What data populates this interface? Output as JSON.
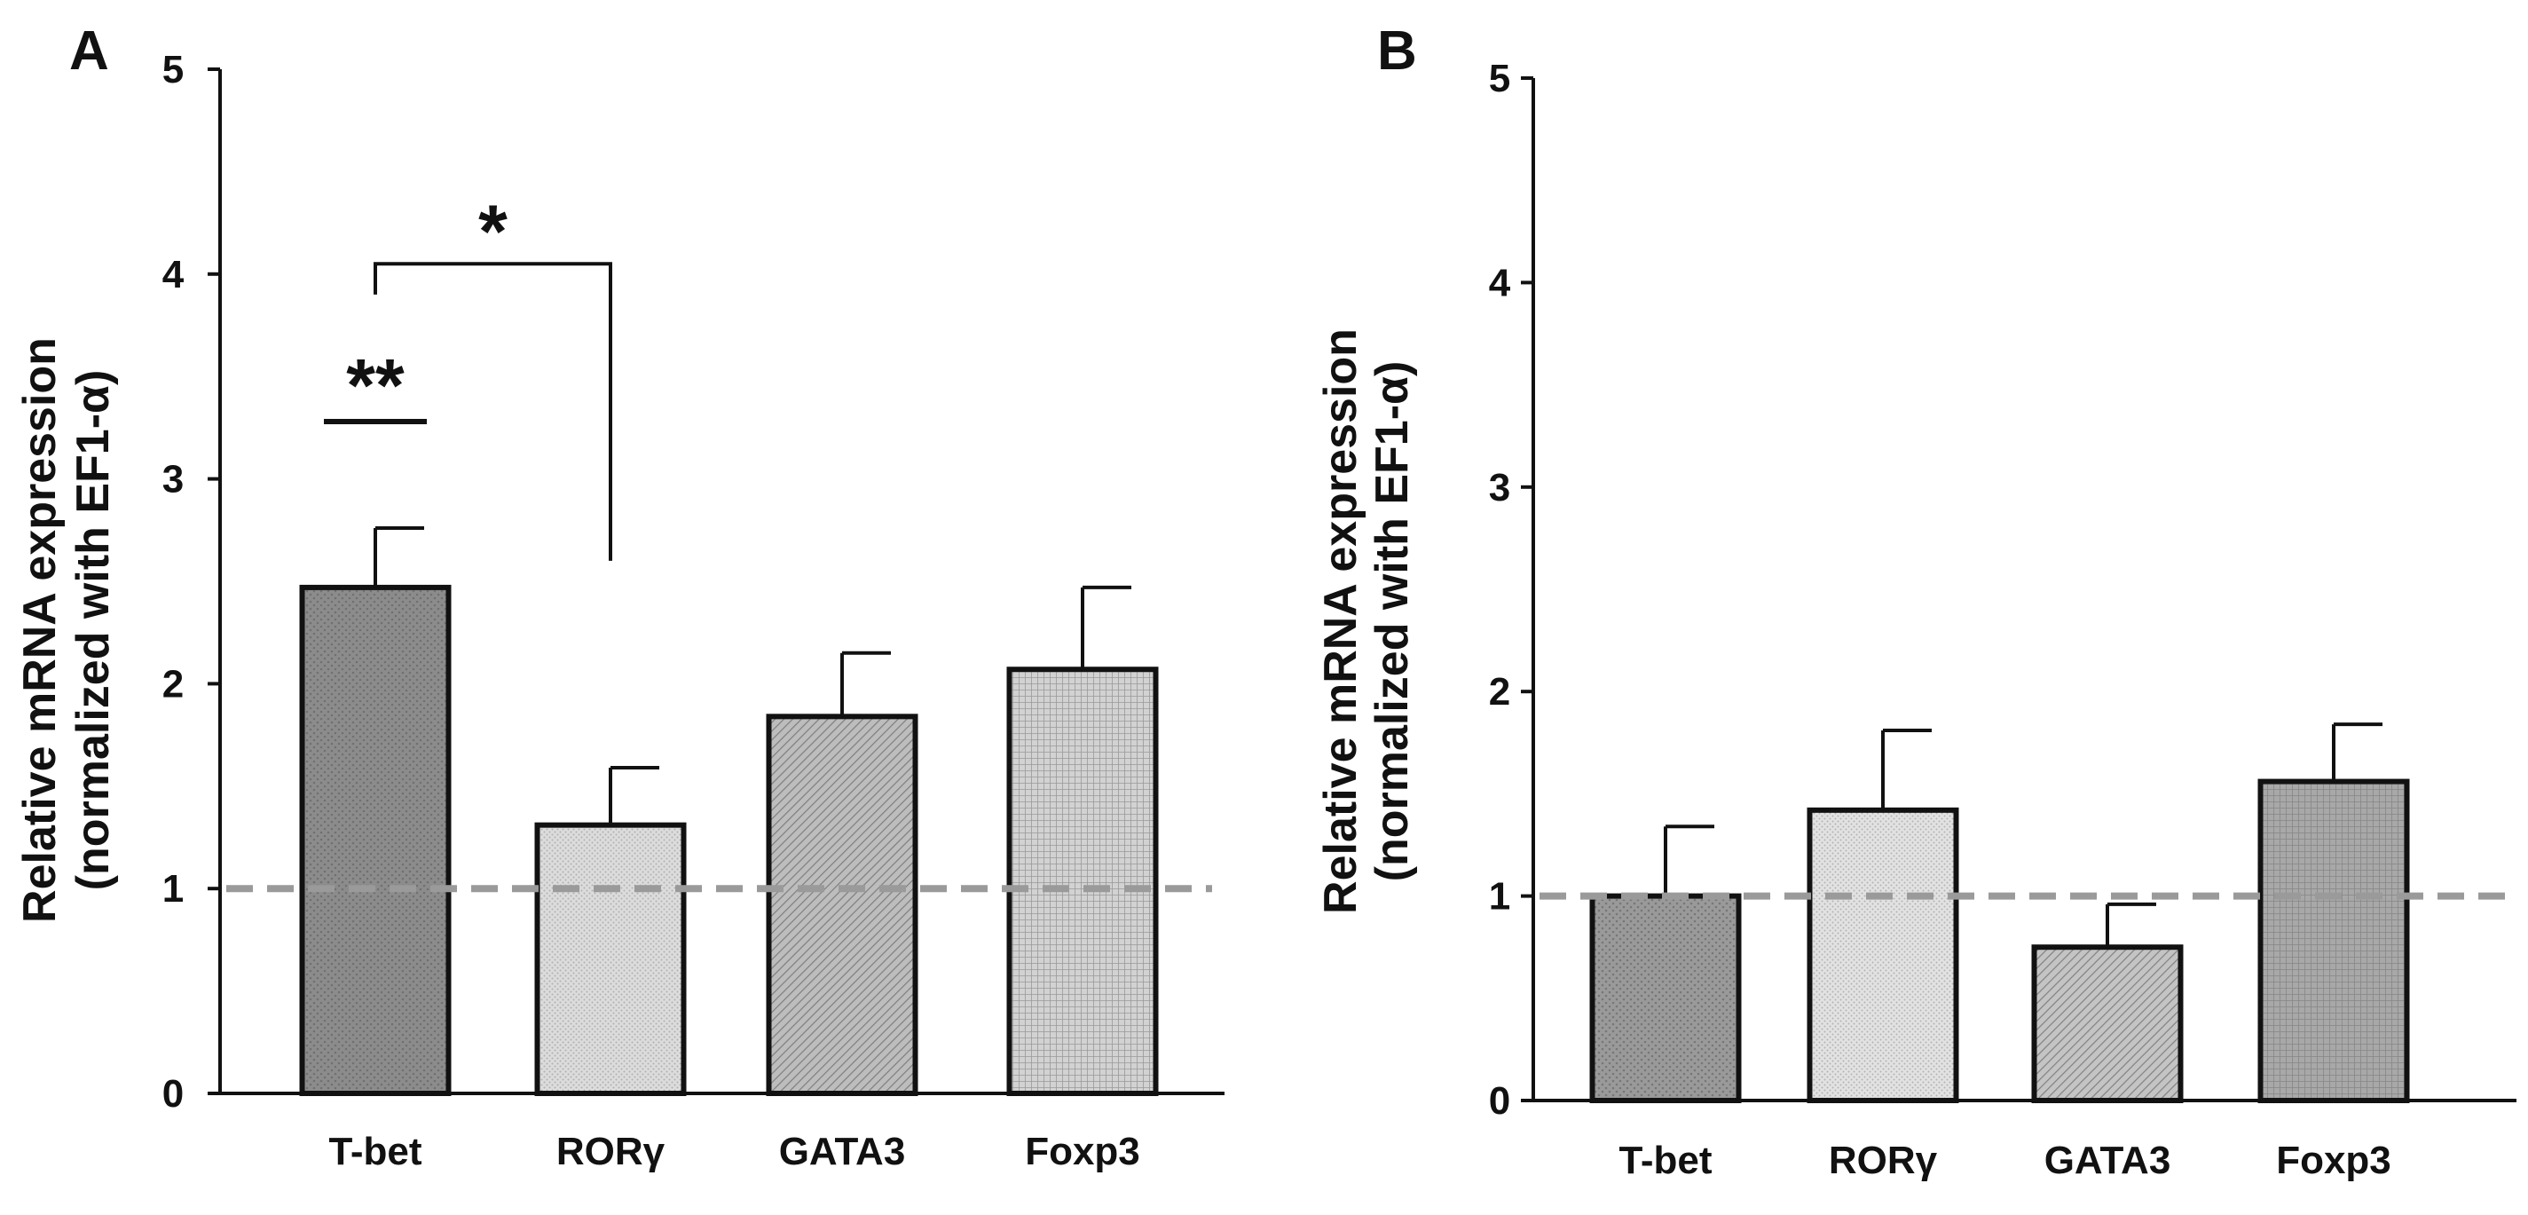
{
  "colors": {
    "axis": "#111111",
    "dashed_line": "#9a9a9a"
  },
  "chart_data": [
    {
      "panel": "A",
      "type": "bar",
      "ylabel_line1": "Relative mRNA expression",
      "ylabel_line2": "(normalized with EF1-α)",
      "ylim": [
        0,
        5
      ],
      "yticks": [
        0,
        1,
        2,
        3,
        4,
        5
      ],
      "categories": [
        "T-bet",
        "RORγ",
        "GATA3",
        "Foxp3"
      ],
      "values": [
        2.47,
        1.31,
        1.84,
        2.07
      ],
      "errors": [
        0.29,
        0.28,
        0.31,
        0.4
      ],
      "fills": [
        "#8c8c8c",
        "#dcdcdc",
        "#bdbdbd",
        "#d2d2d2"
      ],
      "patterns": [
        "dots",
        "dots-fine",
        "diagonal",
        "grid"
      ],
      "reference_line": 1,
      "annotations": [
        {
          "type": "bracket",
          "label": "*",
          "x1": 0,
          "x2": 1,
          "y_top": 4.05,
          "y_left_end": 3.9,
          "y_right_end": 2.6
        },
        {
          "type": "bar",
          "label": "**",
          "x": 0,
          "y": 3.28
        }
      ]
    },
    {
      "panel": "B",
      "type": "bar",
      "ylabel_line1": "Relative mRNA expression",
      "ylabel_line2": "(normalized with EF1-α)",
      "ylim": [
        0,
        5
      ],
      "yticks": [
        0,
        1,
        2,
        3,
        4,
        5
      ],
      "categories": [
        "T-bet",
        "RORγ",
        "GATA3",
        "Foxp3"
      ],
      "values": [
        1.0,
        1.42,
        0.75,
        1.56
      ],
      "errors": [
        0.34,
        0.39,
        0.21,
        0.28
      ],
      "fills": [
        "#9a9a9a",
        "#e2e2e2",
        "#c4c4c4",
        "#a8a8a8"
      ],
      "patterns": [
        "dots",
        "dots-fine",
        "diagonal",
        "grid"
      ],
      "reference_line": 1,
      "annotations": []
    }
  ]
}
